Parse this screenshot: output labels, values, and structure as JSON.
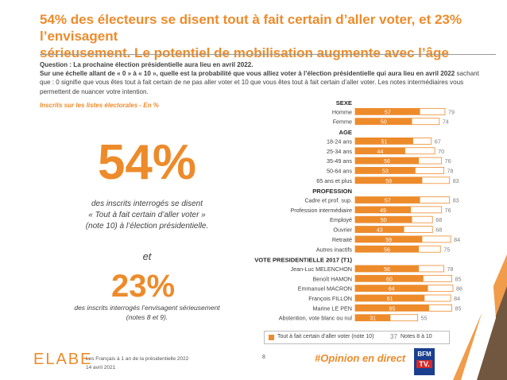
{
  "header": {
    "title_line1": "54% des électeurs se disent tout à fait certain d’aller voter, et 23% l’envisagent",
    "title_line2": "sérieusement. Le potentiel de mobilisation augmente avec l’âge"
  },
  "question": {
    "label": "Question :",
    "text": "La prochaine élection présidentielle aura lieu en avril 2022.",
    "scale_bold": "Sur une échelle allant de « 0 » à « 10 », quelle est la probabilité que vous alliez voter à l’élection présidentielle qui aura lieu en avril 2022",
    "scale_rest": " sachant que : 0 signifie que vous êtes tout à fait certain de ne pas aller voter et 10 que vous êtes tout à fait certain d’aller voter. Les notes intermédiaires vous permettent de nuancer votre intention."
  },
  "base_note": "Inscrits sur les listes électorales - En %",
  "left_panel": {
    "big_value1": "54%",
    "desc1_line1": "des inscrits interrogés se disent",
    "desc1_line2": "« Tout à fait certain d’aller voter »",
    "desc1_line3": "(note 10) à l’élection présidentielle.",
    "connector": "et",
    "big_value2": "23%",
    "desc2_line1": "des inscrits interrogés l’envisagent sérieusement",
    "desc2_line2": "(notes 8 et 9)."
  },
  "colors": {
    "accent": "#ed8b2b",
    "bar_outline": "#ed8b2b",
    "label_text": "#404040",
    "value_text": "#7f7f7f"
  },
  "chart_data": {
    "type": "bar",
    "orientation": "horizontal",
    "stacked_outline": true,
    "xlim": [
      0,
      100
    ],
    "series": [
      {
        "name": "Tout à fait certain d’aller voter (note 10)"
      },
      {
        "name": "Notes 8 à 10"
      }
    ],
    "groups": [
      {
        "header": "SEXE",
        "rows": [
          {
            "label": "Homme",
            "certain": 57,
            "total": 79
          },
          {
            "label": "Femme",
            "certain": 50,
            "total": 74
          }
        ]
      },
      {
        "header": "AGE",
        "rows": [
          {
            "label": "18-24 ans",
            "certain": 51,
            "total": 67
          },
          {
            "label": "25-34 ans",
            "certain": 44,
            "total": 70
          },
          {
            "label": "35-49 ans",
            "certain": 56,
            "total": 76
          },
          {
            "label": "50-64 ans",
            "certain": 53,
            "total": 78
          },
          {
            "label": "65 ans et plus",
            "certain": 59,
            "total": 83
          }
        ]
      },
      {
        "header": "PROFESSION",
        "rows": [
          {
            "label": "Cadre et prof. sup.",
            "certain": 57,
            "total": 83
          },
          {
            "label": "Profession intermédiaire",
            "certain": 49,
            "total": 76
          },
          {
            "label": "Employé",
            "certain": 50,
            "total": 68
          },
          {
            "label": "Ouvrier",
            "certain": 43,
            "total": 68
          },
          {
            "label": "Retraité",
            "certain": 59,
            "total": 84
          },
          {
            "label": "Autres inactifs",
            "certain": 56,
            "total": 75
          }
        ]
      },
      {
        "header": "VOTE PRESIDENTIELLE 2017 (T1)",
        "rows": [
          {
            "label": "Jean-Luc MELENCHON",
            "certain": 56,
            "total": 78
          },
          {
            "label": "Benoît HAMON",
            "certain": 60,
            "total": 85
          },
          {
            "label": "Emmanuel MACRON",
            "certain": 64,
            "total": 86
          },
          {
            "label": "François FILLON",
            "certain": 61,
            "total": 84
          },
          {
            "label": "Marine LE PEN",
            "certain": 65,
            "total": 85
          },
          {
            "label": "Abstention, vote blanc ou nul",
            "certain": 31,
            "total": 55
          }
        ]
      }
    ]
  },
  "legend": {
    "item1_label": "Tout à fait certain d’aller voter (note 10)",
    "item2_number": "37",
    "item2_label": "Notes 8 à 10"
  },
  "footer": {
    "logo_text": "ELABE",
    "study_title": "Les Français à 1 an de la présidentielle 2022",
    "date": "14 avril 2021",
    "page_number": "8",
    "hashtag": "#Opinion en direct",
    "partner_top": "BFM",
    "partner_bottom": "TV."
  }
}
